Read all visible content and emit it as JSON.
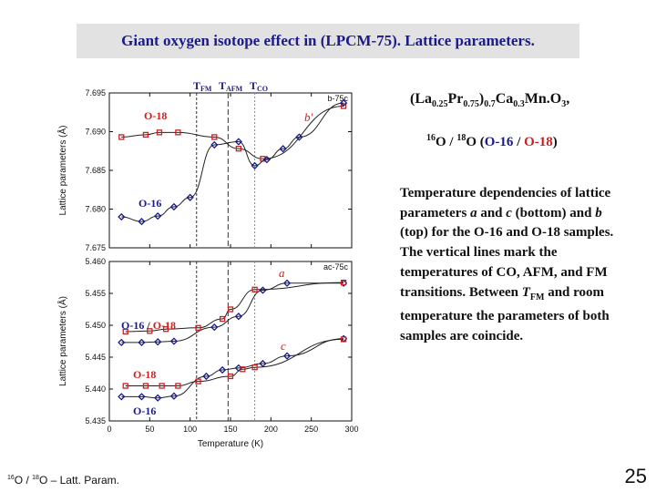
{
  "slide": {
    "title": "Giant oxygen isotope effect in (LPCM-75). Lattice parameters.",
    "formula": {
      "p1": "(La",
      "s1": "0.25",
      "p2": "Pr",
      "s2": "0.75",
      "p3": ")",
      "s3": "0.7",
      "p4": "Ca",
      "s4": "0.3",
      "p5": "Mn.O",
      "s5": "3",
      "p6": ","
    },
    "isotopes": {
      "sup1": "16",
      "t1": "O / ",
      "sup2": "18",
      "t2": "O (",
      "o16": "O-16",
      "sep": " / ",
      "o18": "O-18",
      "close": ")"
    },
    "description": {
      "p1": "Temperature dependencies of lattice parameters ",
      "a": "a",
      "p2": " and ",
      "c": "c",
      "p3": " (bottom) and ",
      "b": "b",
      "p4": " (top) for the O-16 and O-18 samples. The vertical lines mark the temperatures of CO, AFM, and FM transitions. Between ",
      "tfm_t": "T",
      "tfm_sub": "FM",
      "p5": " and room temperature the parameters of both samples are coincide."
    },
    "footer": {
      "sup1": "16",
      "t1": "O / ",
      "sup2": "18",
      "t2": "O – Latt. Param."
    },
    "page_number": "25"
  },
  "chart_data": [
    {
      "type": "scatter",
      "panel": "top",
      "ylabel": "Lattice parameters (Å)",
      "ylim": [
        7.675,
        7.695
      ],
      "yticks": [
        "7.675",
        "7.680",
        "7.685",
        "7.690",
        "7.695"
      ],
      "xlim": [
        0,
        300
      ],
      "corner_label": "b-75c",
      "curve_label": "b'",
      "vlines": [
        {
          "x": 108,
          "label_main": "T",
          "label_sub": "FM"
        },
        {
          "x": 147,
          "label_main": "T",
          "label_sub": "AFM"
        },
        {
          "x": 180,
          "label_main": "T",
          "label_sub": "CO"
        }
      ],
      "series": [
        {
          "name": "O-18",
          "color": "#cc2020",
          "marker": "square",
          "x": [
            15,
            45,
            62,
            85,
            130,
            160,
            190,
            290
          ],
          "y": [
            7.6893,
            7.6896,
            7.6899,
            7.6899,
            7.6893,
            7.6878,
            7.6865,
            7.6933
          ]
        },
        {
          "name": "O-16",
          "color": "#1a1a8c",
          "marker": "diamond",
          "x": [
            15,
            40,
            60,
            80,
            100,
            130,
            160,
            180,
            195,
            215,
            235,
            290
          ],
          "y": [
            7.679,
            7.6784,
            7.6791,
            7.6803,
            7.6815,
            7.6883,
            7.6887,
            7.6856,
            7.6864,
            7.6878,
            7.6893,
            7.6937
          ]
        }
      ]
    },
    {
      "type": "scatter",
      "panel": "bottom",
      "ylabel": "Lattice parameters (Å)",
      "xlabel": "Temperature (K)",
      "ylim": [
        5.435,
        5.46
      ],
      "yticks": [
        "5.435",
        "5.440",
        "5.445",
        "5.450",
        "5.455",
        "5.460"
      ],
      "xlim": [
        0,
        300
      ],
      "xticks": [
        "0",
        "50",
        "100",
        "150",
        "200",
        "250",
        "300"
      ],
      "corner_label": "ac-75c",
      "curve_labels": {
        "a": "a",
        "c": "c"
      },
      "vlines": [
        {
          "x": 108
        },
        {
          "x": 147
        },
        {
          "x": 180
        }
      ],
      "series": [
        {
          "name": "O-16 a",
          "color": "#1a1a8c",
          "marker": "diamond",
          "x": [
            15,
            40,
            60,
            80,
            130,
            160,
            190,
            220,
            290
          ],
          "y": [
            5.4473,
            5.4473,
            5.4474,
            5.4475,
            5.4497,
            5.4514,
            5.4555,
            5.4566,
            5.4566
          ]
        },
        {
          "name": "O-18 a",
          "color": "#cc2020",
          "marker": "square",
          "x": [
            20,
            50,
            70,
            110,
            140,
            150,
            180,
            290
          ],
          "y": [
            5.449,
            5.4491,
            5.4494,
            5.4496,
            5.451,
            5.4525,
            5.4556,
            5.4567
          ]
        },
        {
          "name": "O-16 c",
          "color": "#1a1a8c",
          "marker": "diamond",
          "x": [
            15,
            40,
            60,
            80,
            120,
            140,
            160,
            190,
            220,
            290
          ],
          "y": [
            5.4388,
            5.4388,
            5.4386,
            5.4389,
            5.442,
            5.443,
            5.4433,
            5.444,
            5.4452,
            5.4479
          ]
        },
        {
          "name": "O-18 c",
          "color": "#cc2020",
          "marker": "square",
          "x": [
            20,
            45,
            65,
            85,
            110,
            150,
            165,
            180,
            290
          ],
          "y": [
            5.4405,
            5.4405,
            5.4405,
            5.4405,
            5.4412,
            5.442,
            5.4431,
            5.4434,
            5.4478
          ]
        }
      ],
      "legend_labels": [
        "O-16",
        "O-18",
        "O-18",
        "O-16"
      ],
      "legend_sep": " / "
    }
  ]
}
